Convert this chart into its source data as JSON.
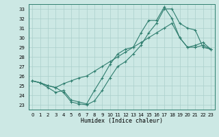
{
  "xlabel": "Humidex (Indice chaleur)",
  "bg_color": "#cce8e4",
  "line_color": "#2e7d6e",
  "grid_color": "#aacfcb",
  "xlim": [
    -0.5,
    23.5
  ],
  "ylim": [
    22.5,
    33.5
  ],
  "xticks": [
    0,
    1,
    2,
    3,
    4,
    5,
    6,
    7,
    8,
    9,
    10,
    11,
    12,
    13,
    14,
    15,
    16,
    17,
    18,
    19,
    20,
    21,
    22,
    23
  ],
  "yticks": [
    23,
    24,
    25,
    26,
    27,
    28,
    29,
    30,
    31,
    32,
    33
  ],
  "line1_x": [
    0,
    1,
    2,
    3,
    4,
    5,
    6,
    7,
    8,
    9,
    10,
    11,
    12,
    13,
    14,
    15,
    16,
    17,
    18,
    19,
    20,
    21,
    22,
    23
  ],
  "line1_y": [
    25.5,
    25.3,
    25.0,
    24.8,
    24.3,
    23.3,
    23.1,
    23.0,
    23.4,
    24.5,
    25.8,
    27.0,
    27.5,
    28.3,
    29.2,
    30.5,
    31.5,
    33.0,
    33.0,
    31.5,
    31.0,
    30.8,
    29.0,
    28.8
  ],
  "line2_x": [
    0,
    1,
    2,
    3,
    4,
    5,
    6,
    7,
    8,
    9,
    10,
    11,
    12,
    13,
    14,
    15,
    16,
    17,
    18,
    19,
    20,
    21,
    22,
    23
  ],
  "line2_y": [
    25.5,
    25.3,
    25.0,
    24.8,
    25.2,
    25.5,
    25.8,
    26.0,
    26.5,
    27.0,
    27.5,
    28.0,
    28.5,
    29.0,
    29.5,
    30.0,
    30.5,
    31.0,
    31.5,
    30.0,
    29.0,
    29.0,
    29.2,
    28.8
  ],
  "line3_x": [
    0,
    1,
    2,
    3,
    4,
    5,
    6,
    7,
    8,
    9,
    10,
    11,
    12,
    13,
    14,
    15,
    16,
    17,
    18,
    19,
    20,
    21,
    22,
    23
  ],
  "line3_y": [
    25.5,
    25.3,
    24.8,
    24.3,
    24.5,
    23.5,
    23.3,
    23.1,
    24.5,
    25.8,
    27.2,
    28.3,
    28.8,
    29.0,
    30.5,
    31.8,
    31.8,
    33.2,
    32.0,
    30.0,
    29.0,
    29.2,
    29.5,
    28.8
  ]
}
